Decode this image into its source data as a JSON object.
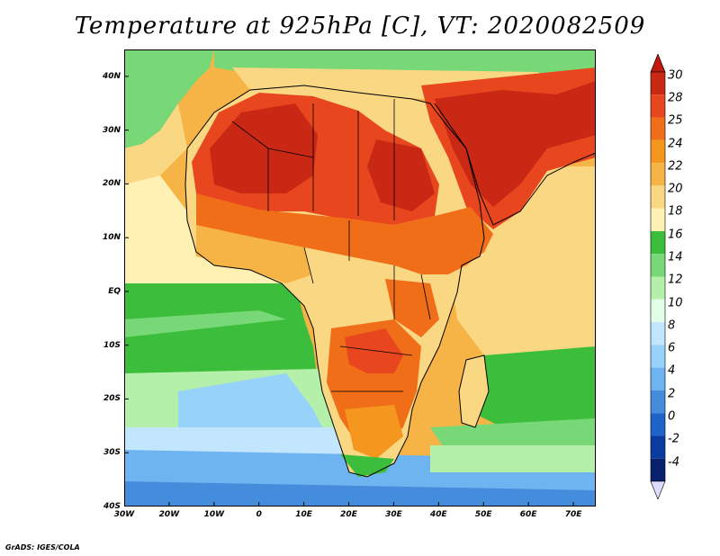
{
  "title": "Temperature at 925hPa [C], VT: 2020082509",
  "credit": "GrADS: IGES/COLA",
  "map": {
    "lon_range": [
      -30,
      75
    ],
    "lat_range": [
      -40,
      45
    ],
    "lat_labels": [
      "40N",
      "30N",
      "20N",
      "10N",
      "EQ",
      "10S",
      "20S",
      "30S",
      "40S"
    ],
    "lat_values": [
      40,
      30,
      20,
      10,
      0,
      -10,
      -20,
      -30,
      -40
    ],
    "lon_labels": [
      "30W",
      "20W",
      "10W",
      "0",
      "10E",
      "20E",
      "30E",
      "40E",
      "50E",
      "60E",
      "70E"
    ],
    "lon_values": [
      -30,
      -20,
      -10,
      0,
      10,
      20,
      30,
      40,
      50,
      60,
      70
    ]
  },
  "colorbar": {
    "labels": [
      "30",
      "28",
      "25",
      "24",
      "22",
      "20",
      "18",
      "16",
      "14",
      "12",
      "10",
      "8",
      "6",
      "4",
      "2",
      "0",
      "-2",
      "-4"
    ],
    "colors": [
      "#c82814",
      "#e8461e",
      "#f06e18",
      "#f5961e",
      "#f7b446",
      "#fad782",
      "#fff0b4",
      "#3cbe3c",
      "#78d878",
      "#b4f0aa",
      "#e1ffe6",
      "#c3e6ff",
      "#96d2fa",
      "#6eb4f0",
      "#468cdc",
      "#1e64c8",
      "#0a3ca0",
      "#08216b"
    ],
    "top_arrow_color": "#c01a10",
    "bottom_arrow_color": "#dcdcff"
  }
}
